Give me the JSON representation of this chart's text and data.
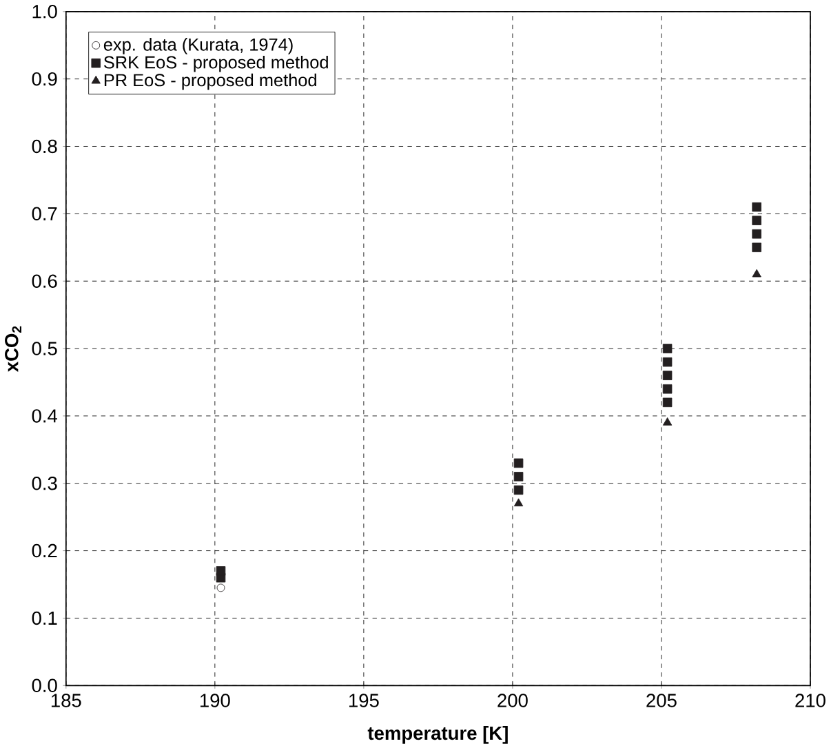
{
  "chart_data": {
    "type": "scatter",
    "xlabel": "temperature [K]",
    "ylabel": "xCO$_{2}$",
    "xlim": [
      185,
      210
    ],
    "xticks": [
      185,
      190,
      195,
      200,
      205,
      210
    ],
    "ylim": [
      0,
      1
    ],
    "yticks": [
      {
        "value": 0,
        "label": "0.0"
      },
      {
        "value": 0.1,
        "label": "0.1"
      },
      {
        "value": 0.2,
        "label": "0.2"
      },
      {
        "value": 0.3,
        "label": "0.3"
      },
      {
        "value": 0.4,
        "label": "0.4"
      },
      {
        "value": 0.5,
        "label": "0.5"
      },
      {
        "value": 0.6,
        "label": "0.6"
      },
      {
        "value": 0.7,
        "label": "0.7"
      },
      {
        "value": 0.8,
        "label": "0.8"
      },
      {
        "value": 0.9,
        "label": "0.9"
      },
      {
        "value": 1,
        "label": "1.0"
      }
    ],
    "grid": true,
    "legend": "top left",
    "series": [
      {
        "name": "exp. data (Kurata, 1974)",
        "color": "#231f20",
        "marker": "circle",
        "x": [
          190.2
        ],
        "values": [
          0.145
        ]
      },
      {
        "name": "SRK EoS - proposed method",
        "color": "#231f20",
        "marker": "square",
        "x": [
          190.2,
          190.2,
          200.2,
          200.2,
          200.2,
          205.2,
          205.2,
          205.2,
          205.2,
          205.2,
          208.2,
          208.2,
          208.2,
          208.2
        ],
        "values": [
          0.16,
          0.17,
          0.29,
          0.31,
          0.33,
          0.42,
          0.44,
          0.46,
          0.48,
          0.5,
          0.65,
          0.67,
          0.69,
          0.71
        ]
      },
      {
        "name": "PR EoS - proposed method",
        "color": "#231f20",
        "marker": "triangle",
        "x": [
          200.2,
          205.2,
          208.2
        ],
        "values": [
          0.27,
          0.39,
          0.61
        ]
      }
    ]
  }
}
